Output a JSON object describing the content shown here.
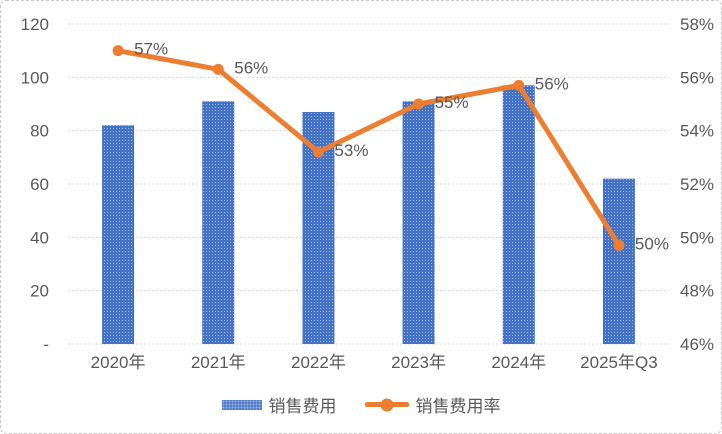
{
  "chart_data": {
    "type": "combo",
    "title": "",
    "categories": [
      "2020年",
      "2021年",
      "2022年",
      "2023年",
      "2024年",
      "2025年Q3"
    ],
    "series": [
      {
        "name": "销售费用",
        "type": "bar",
        "axis": "left",
        "color": "#4472C4",
        "values": [
          82,
          91,
          87,
          91,
          97,
          62
        ]
      },
      {
        "name": "销售费用率",
        "type": "line",
        "axis": "right",
        "color": "#ED7D31",
        "values": [
          57.0,
          56.3,
          53.2,
          55.0,
          55.7,
          49.7
        ],
        "data_labels": [
          "57%",
          "56%",
          "53%",
          "55%",
          "56%",
          "50%"
        ]
      }
    ],
    "left_axis": {
      "min": 0,
      "max": 120,
      "tick_step": 20,
      "tick_labels": [
        "120",
        "100",
        "80",
        "60",
        "40",
        "20",
        "-"
      ]
    },
    "right_axis": {
      "min": 46,
      "max": 58,
      "tick_step": 2,
      "tick_labels": [
        "58%",
        "56%",
        "54%",
        "52%",
        "50%",
        "48%",
        "46%"
      ]
    },
    "grid": {
      "horizontal": true,
      "vertical": false,
      "style": "dotted"
    },
    "legend": {
      "position": "bottom",
      "items": [
        "销售费用",
        "销售费用率"
      ]
    }
  },
  "colors": {
    "bar": "#4472C4",
    "bar_dot": "#9DB5E4",
    "line": "#ED7D31",
    "axis_text": "#595959",
    "data_label_text": "#595959",
    "grid": "#D9D9D9",
    "background": "#FFFFFF",
    "border": "#C6C6C6"
  }
}
